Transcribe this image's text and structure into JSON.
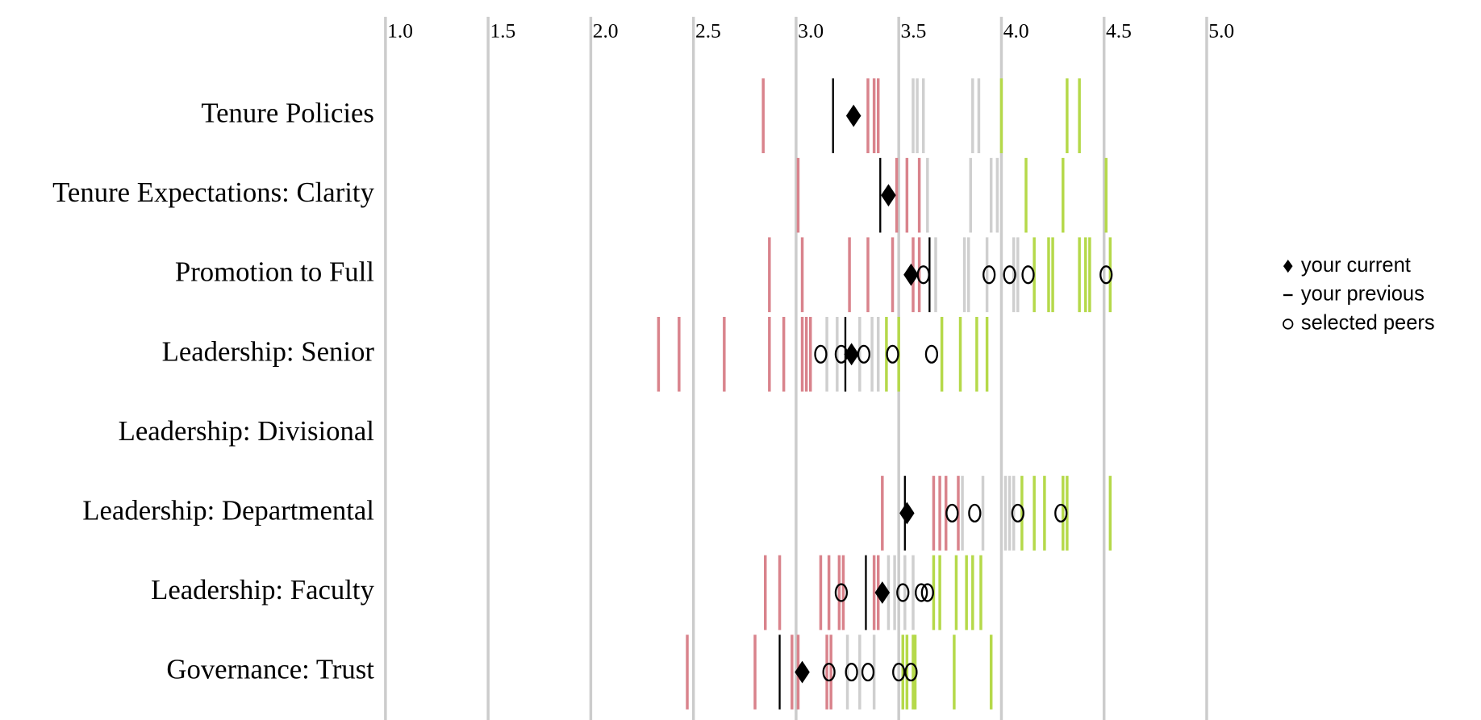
{
  "chart_data": {
    "type": "strip",
    "categories": [
      "Tenure Policies",
      "Tenure Expectations: Clarity",
      "Promotion to Full",
      "Leadership: Senior",
      "Leadership: Divisional",
      "Leadership: Departmental",
      "Leadership: Faculty",
      "Governance: Trust"
    ],
    "xlim": [
      1,
      5
    ],
    "xticks": [
      {
        "value": 1,
        "label": "1.0"
      },
      1.5,
      {
        "value": 2,
        "label": "2.0"
      },
      2.5,
      {
        "value": 3,
        "label": "3.0"
      },
      3.5,
      {
        "value": 4,
        "label": "4.0"
      },
      4.5,
      {
        "value": 5,
        "label": "5.0"
      }
    ],
    "grid": true,
    "legend": "right",
    "series": [
      {
        "name": "your current",
        "color": "#000000",
        "values": [
          3.28,
          3.45,
          3.56,
          3.27,
          null,
          3.54,
          3.42,
          3.03
        ]
      },
      {
        "name": "your previous",
        "color": "#000000",
        "values": [
          3.18,
          3.41,
          3.65,
          3.24,
          null,
          3.53,
          3.34,
          2.92
        ]
      },
      {
        "name": "selected peers",
        "color": "#000000",
        "values": [
          [],
          [],
          [
            3.62,
            3.94,
            4.04,
            4.13,
            4.51
          ],
          [
            3.12,
            3.22,
            3.33,
            3.47,
            3.66
          ],
          [],
          [
            3.76,
            3.87,
            4.08,
            4.29
          ],
          [
            3.22,
            3.52,
            3.61,
            3.64
          ],
          [
            3.16,
            3.27,
            3.35,
            3.5,
            3.56
          ]
        ]
      }
    ],
    "groups": [
      {
        "color": "#d9838c",
        "values": [
          [
            2.84,
            3.35,
            3.38,
            3.4
          ],
          [
            3.01,
            3.49,
            3.54,
            3.6
          ],
          [
            2.87,
            3.03,
            3.26,
            3.35,
            3.47,
            3.57,
            3.6
          ],
          [
            2.33,
            2.43,
            2.65,
            2.87,
            2.94,
            3.03,
            3.05,
            3.07
          ],
          [],
          [
            3.42,
            3.67,
            3.7,
            3.73,
            3.79
          ],
          [
            2.85,
            2.92,
            3.12,
            3.16,
            3.21,
            3.23,
            3.38,
            3.4
          ],
          [
            2.47,
            2.8,
            2.98,
            3.01,
            3.15,
            3.17
          ]
        ]
      },
      {
        "color": "#cfcfcf",
        "values": [
          [
            3.57,
            3.59,
            3.62,
            3.86,
            3.89
          ],
          [
            3.64,
            3.85,
            3.95,
            3.98
          ],
          [
            3.68,
            3.82,
            3.84,
            3.93,
            4.06,
            4.08
          ],
          [
            3.15,
            3.2,
            3.31,
            3.37,
            3.4
          ],
          [],
          [
            3.81,
            3.91,
            4.02,
            4.04,
            4.06
          ],
          [
            3.45,
            3.48,
            3.53,
            3.57
          ],
          [
            3.25,
            3.31,
            3.38
          ]
        ]
      },
      {
        "color": "#b5d94a",
        "values": [
          [
            4.0,
            4.32,
            4.38
          ],
          [
            4.12,
            4.3,
            4.51
          ],
          [
            4.16,
            4.23,
            4.25,
            4.38,
            4.41,
            4.43,
            4.53
          ],
          [
            3.44,
            3.5,
            3.71,
            3.8,
            3.88,
            3.93
          ],
          [],
          [
            4.1,
            4.16,
            4.21,
            4.3,
            4.32,
            4.53
          ],
          [
            3.67,
            3.7,
            3.78,
            3.83,
            3.86,
            3.9
          ],
          [
            3.52,
            3.54,
            3.57,
            3.58,
            3.77,
            3.95
          ]
        ]
      }
    ]
  }
}
